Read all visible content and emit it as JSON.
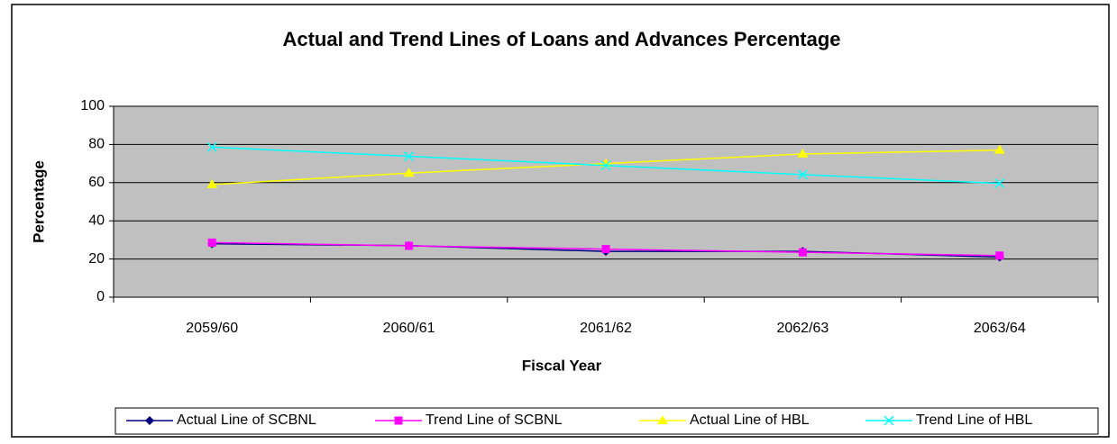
{
  "chart_data": {
    "type": "line",
    "title": "Actual and Trend Lines of Loans and Advances Percentage",
    "x_label": "Fiscal Year",
    "y_label": "Percentage",
    "categories": [
      "2059/60",
      "2060/61",
      "2061/62",
      "2062/63",
      "2063/64"
    ],
    "series": [
      {
        "name": "Actual Line of SCBNL",
        "color": "#000080",
        "marker": "diamond",
        "values": [
          28,
          27,
          24,
          24,
          21
        ]
      },
      {
        "name": "Trend Line of SCBNL",
        "color": "#ff00ff",
        "marker": "square",
        "values": [
          28.6,
          26.9,
          25.2,
          23.5,
          21.8
        ]
      },
      {
        "name": "Actual Line of HBL",
        "color": "#ffff00",
        "marker": "triangle",
        "values": [
          59,
          65,
          70,
          75,
          77
        ]
      },
      {
        "name": "Trend Line of HBL",
        "color": "#00ffff",
        "marker": "x",
        "values": [
          78.6,
          73.8,
          69,
          64.2,
          59.6
        ]
      }
    ],
    "ylim": [
      0,
      100
    ],
    "yticks": [
      0,
      20,
      40,
      60,
      80,
      100
    ],
    "grid": true,
    "legend": "bottom"
  }
}
